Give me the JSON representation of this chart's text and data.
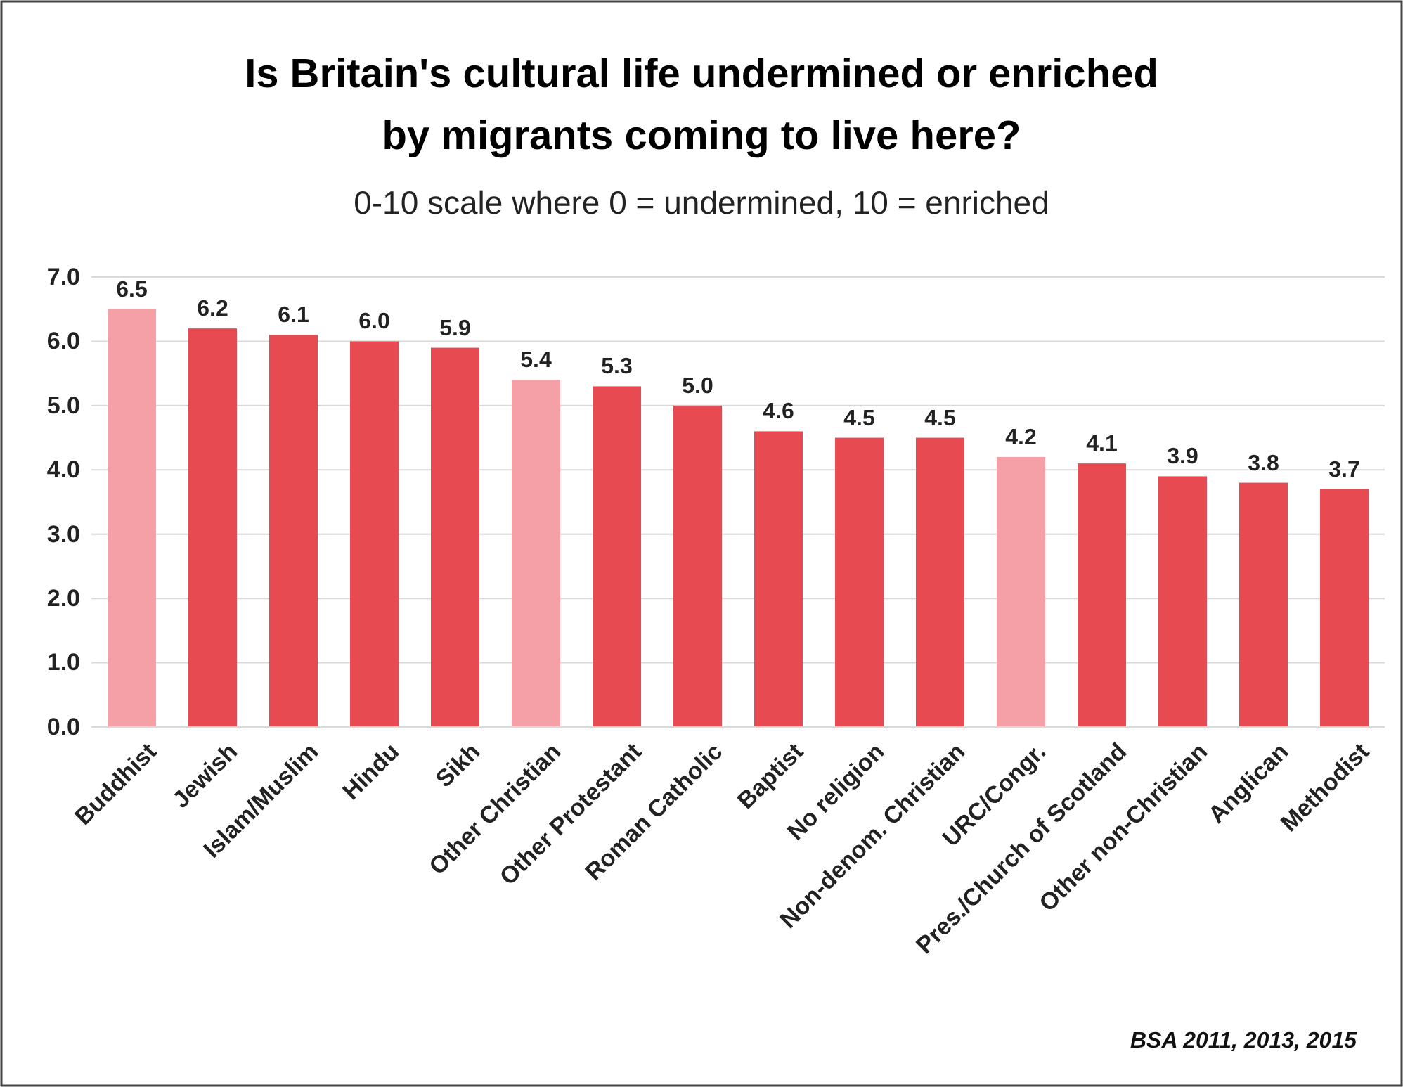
{
  "chart_data": {
    "type": "bar",
    "title": "Is  Britain's cultural life undermined or enriched by migrants coming to live here?",
    "subtitle": "0-10 scale where 0 = undermined, 10 = enriched",
    "categories": [
      "Buddhist",
      "Jewish",
      "Islam/Muslim",
      "Hindu",
      "Sikh",
      "Other Christian",
      "Other Protestant",
      "Roman Catholic",
      "Baptist",
      "No religion",
      "Non-denom. Christian",
      "URC/Congr.",
      "Pres./Church of Scotland",
      "Other non-Christian",
      "Anglican",
      "Methodist"
    ],
    "values": [
      6.5,
      6.2,
      6.1,
      6.0,
      5.9,
      5.4,
      5.3,
      5.0,
      4.6,
      4.5,
      4.5,
      4.2,
      4.1,
      3.9,
      3.8,
      3.7
    ],
    "value_labels": [
      "6.5",
      "6.2",
      "6.1",
      "6.0",
      "5.9",
      "5.4",
      "5.3",
      "5.0",
      "4.6",
      "4.5",
      "4.5",
      "4.2",
      "4.1",
      "3.9",
      "3.8",
      "3.7"
    ],
    "colors": [
      "#f4a0a6",
      "#e84a52",
      "#e84a52",
      "#e84a52",
      "#e84a52",
      "#f4a0a6",
      "#e84a52",
      "#e84a52",
      "#e84a52",
      "#e84a52",
      "#e84a52",
      "#f4a0a6",
      "#e84a52",
      "#e84a52",
      "#e84a52",
      "#e84a52"
    ],
    "ylim": [
      0,
      7
    ],
    "yticks": [
      {
        "value": 0,
        "label": "0.0"
      },
      {
        "value": 1,
        "label": "1.0"
      },
      {
        "value": 2,
        "label": "2.0"
      },
      {
        "value": 3,
        "label": "3.0"
      },
      {
        "value": 4,
        "label": "4.0"
      },
      {
        "value": 5,
        "label": "5.0"
      },
      {
        "value": 6,
        "label": "6.0"
      },
      {
        "value": 7,
        "label": "7.0"
      }
    ],
    "grid": "y",
    "annotations": [
      "BSA 2011, 2013, 2015"
    ]
  }
}
